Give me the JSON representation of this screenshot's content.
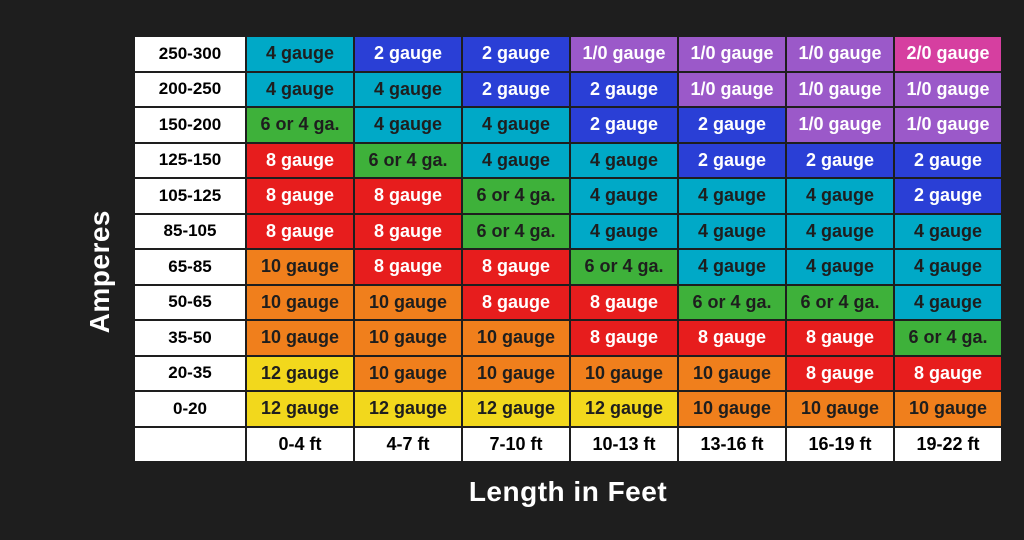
{
  "chart": {
    "type": "table-heatmap",
    "y_axis_label": "Amperes",
    "x_axis_label": "Length in Feet",
    "background_color": "#1e1e1e",
    "cell_border_color": "#1e1e1e",
    "header_bg": "#ffffff",
    "header_text_color": "#000000",
    "cell_text_color_light": "#ffffff",
    "cell_text_color_dark": "#1e1e1e",
    "cell_font_size_pt": 14,
    "label_font_size_pt": 21,
    "row_headers": [
      "250-300",
      "200-250",
      "150-200",
      "125-150",
      "105-125",
      "85-105",
      "65-85",
      "50-65",
      "35-50",
      "20-35",
      "0-20"
    ],
    "col_headers": [
      "0-4 ft",
      "4-7 ft",
      "7-10 ft",
      "10-13 ft",
      "13-16 ft",
      "16-19 ft",
      "19-22 ft"
    ],
    "palette": {
      "teal": "#00a9c7",
      "blue": "#2a3fd6",
      "purple": "#9b59c9",
      "pink": "#d63fa0",
      "green": "#3eb13a",
      "red": "#e71d1d",
      "orange": "#f07f1c",
      "yellow": "#f2d81c"
    },
    "cells": [
      [
        {
          "text": "4 gauge",
          "c": "teal",
          "dark": true
        },
        {
          "text": "2 gauge",
          "c": "blue"
        },
        {
          "text": "2 gauge",
          "c": "blue"
        },
        {
          "text": "1/0 gauge",
          "c": "purple"
        },
        {
          "text": "1/0 gauge",
          "c": "purple"
        },
        {
          "text": "1/0 gauge",
          "c": "purple"
        },
        {
          "text": "2/0 gauge",
          "c": "pink"
        }
      ],
      [
        {
          "text": "4 gauge",
          "c": "teal",
          "dark": true
        },
        {
          "text": "4 gauge",
          "c": "teal",
          "dark": true
        },
        {
          "text": "2 gauge",
          "c": "blue"
        },
        {
          "text": "2 gauge",
          "c": "blue"
        },
        {
          "text": "1/0 gauge",
          "c": "purple"
        },
        {
          "text": "1/0 gauge",
          "c": "purple"
        },
        {
          "text": "1/0 gauge",
          "c": "purple"
        }
      ],
      [
        {
          "text": "6 or 4 ga.",
          "c": "green",
          "dark": true
        },
        {
          "text": "4 gauge",
          "c": "teal",
          "dark": true
        },
        {
          "text": "4 gauge",
          "c": "teal",
          "dark": true
        },
        {
          "text": "2 gauge",
          "c": "blue"
        },
        {
          "text": "2 gauge",
          "c": "blue"
        },
        {
          "text": "1/0 gauge",
          "c": "purple"
        },
        {
          "text": "1/0 gauge",
          "c": "purple"
        }
      ],
      [
        {
          "text": "8 gauge",
          "c": "red"
        },
        {
          "text": "6 or 4 ga.",
          "c": "green",
          "dark": true
        },
        {
          "text": "4 gauge",
          "c": "teal",
          "dark": true
        },
        {
          "text": "4 gauge",
          "c": "teal",
          "dark": true
        },
        {
          "text": "2 gauge",
          "c": "blue"
        },
        {
          "text": "2 gauge",
          "c": "blue"
        },
        {
          "text": "2 gauge",
          "c": "blue"
        }
      ],
      [
        {
          "text": "8 gauge",
          "c": "red"
        },
        {
          "text": "8 gauge",
          "c": "red"
        },
        {
          "text": "6 or 4 ga.",
          "c": "green",
          "dark": true
        },
        {
          "text": "4 gauge",
          "c": "teal",
          "dark": true
        },
        {
          "text": "4 gauge",
          "c": "teal",
          "dark": true
        },
        {
          "text": "4 gauge",
          "c": "teal",
          "dark": true
        },
        {
          "text": "2 gauge",
          "c": "blue"
        }
      ],
      [
        {
          "text": "8 gauge",
          "c": "red"
        },
        {
          "text": "8 gauge",
          "c": "red"
        },
        {
          "text": "6 or 4 ga.",
          "c": "green",
          "dark": true
        },
        {
          "text": "4 gauge",
          "c": "teal",
          "dark": true
        },
        {
          "text": "4 gauge",
          "c": "teal",
          "dark": true
        },
        {
          "text": "4 gauge",
          "c": "teal",
          "dark": true
        },
        {
          "text": "4 gauge",
          "c": "teal",
          "dark": true
        }
      ],
      [
        {
          "text": "10 gauge",
          "c": "orange",
          "dark": true
        },
        {
          "text": "8 gauge",
          "c": "red"
        },
        {
          "text": "8 gauge",
          "c": "red"
        },
        {
          "text": "6 or 4 ga.",
          "c": "green",
          "dark": true
        },
        {
          "text": "4 gauge",
          "c": "teal",
          "dark": true
        },
        {
          "text": "4 gauge",
          "c": "teal",
          "dark": true
        },
        {
          "text": "4 gauge",
          "c": "teal",
          "dark": true
        }
      ],
      [
        {
          "text": "10 gauge",
          "c": "orange",
          "dark": true
        },
        {
          "text": "10 gauge",
          "c": "orange",
          "dark": true
        },
        {
          "text": "8 gauge",
          "c": "red"
        },
        {
          "text": "8 gauge",
          "c": "red"
        },
        {
          "text": "6 or 4 ga.",
          "c": "green",
          "dark": true
        },
        {
          "text": "6 or 4 ga.",
          "c": "green",
          "dark": true
        },
        {
          "text": "4 gauge",
          "c": "teal",
          "dark": true
        }
      ],
      [
        {
          "text": "10 gauge",
          "c": "orange",
          "dark": true
        },
        {
          "text": "10 gauge",
          "c": "orange",
          "dark": true
        },
        {
          "text": "10 gauge",
          "c": "orange",
          "dark": true
        },
        {
          "text": "8 gauge",
          "c": "red"
        },
        {
          "text": "8 gauge",
          "c": "red"
        },
        {
          "text": "8 gauge",
          "c": "red"
        },
        {
          "text": "6 or 4 ga.",
          "c": "green",
          "dark": true
        }
      ],
      [
        {
          "text": "12 gauge",
          "c": "yellow",
          "dark": true
        },
        {
          "text": "10 gauge",
          "c": "orange",
          "dark": true
        },
        {
          "text": "10 gauge",
          "c": "orange",
          "dark": true
        },
        {
          "text": "10 gauge",
          "c": "orange",
          "dark": true
        },
        {
          "text": "10 gauge",
          "c": "orange",
          "dark": true
        },
        {
          "text": "8 gauge",
          "c": "red"
        },
        {
          "text": "8 gauge",
          "c": "red"
        }
      ],
      [
        {
          "text": "12 gauge",
          "c": "yellow",
          "dark": true
        },
        {
          "text": "12 gauge",
          "c": "yellow",
          "dark": true
        },
        {
          "text": "12 gauge",
          "c": "yellow",
          "dark": true
        },
        {
          "text": "12 gauge",
          "c": "yellow",
          "dark": true
        },
        {
          "text": "10 gauge",
          "c": "orange",
          "dark": true
        },
        {
          "text": "10 gauge",
          "c": "orange",
          "dark": true
        },
        {
          "text": "10 gauge",
          "c": "orange",
          "dark": true
        }
      ]
    ]
  }
}
